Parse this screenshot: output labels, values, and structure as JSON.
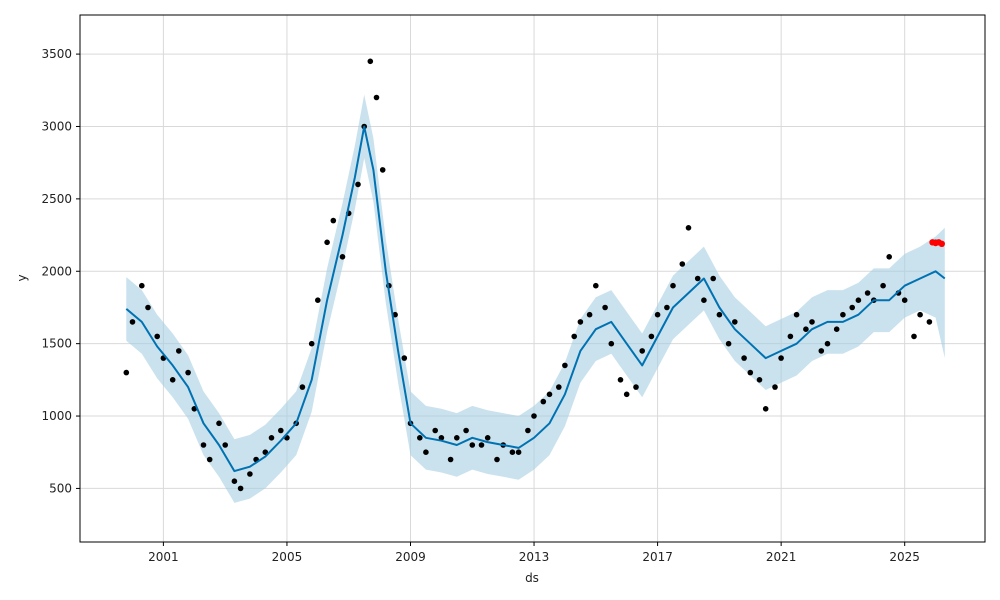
{
  "chart_data": {
    "type": "scatter",
    "xlabel": "ds",
    "ylabel": "y",
    "x_ticks": [
      "2001",
      "2005",
      "2009",
      "2013",
      "2017",
      "2021",
      "2025"
    ],
    "y_ticks": [
      "500",
      "1000",
      "1500",
      "2000",
      "2500",
      "3000",
      "3500"
    ],
    "xlim": [
      1998.3,
      2027.6
    ],
    "ylim": [
      130,
      3770
    ],
    "grid": true,
    "colors": {
      "observed": "#000000",
      "forecast": "#0072B2",
      "interval": "#a6cee3",
      "highlight": "#ff0000"
    },
    "series": [
      {
        "role": "observed",
        "x": [
          1999.8,
          2000.0,
          2000.3,
          2000.5,
          2000.8,
          2001.0,
          2001.3,
          2001.5,
          2001.8,
          2002.0,
          2002.3,
          2002.5,
          2002.8,
          2003.0,
          2003.3,
          2003.5,
          2003.8,
          2004.0,
          2004.3,
          2004.5,
          2004.8,
          2005.0,
          2005.3,
          2005.5,
          2005.8,
          2006.0,
          2006.3,
          2006.5,
          2006.8,
          2007.0,
          2007.3,
          2007.5,
          2007.7,
          2007.9,
          2008.1,
          2008.3,
          2008.5,
          2008.8,
          2009.0,
          2009.3,
          2009.5,
          2009.8,
          2010.0,
          2010.3,
          2010.5,
          2010.8,
          2011.0,
          2011.3,
          2011.5,
          2011.8,
          2012.0,
          2012.3,
          2012.5,
          2012.8,
          2013.0,
          2013.3,
          2013.5,
          2013.8,
          2014.0,
          2014.3,
          2014.5,
          2014.8,
          2015.0,
          2015.3,
          2015.5,
          2015.8,
          2016.0,
          2016.3,
          2016.5,
          2016.8,
          2017.0,
          2017.3,
          2017.5,
          2017.8,
          2018.0,
          2018.3,
          2018.5,
          2018.8,
          2019.0,
          2019.3,
          2019.5,
          2019.8,
          2020.0,
          2020.3,
          2020.5,
          2020.8,
          2021.0,
          2021.3,
          2021.5,
          2021.8,
          2022.0,
          2022.3,
          2022.5,
          2022.8,
          2023.0,
          2023.3,
          2023.5,
          2023.8,
          2024.0,
          2024.3,
          2024.5,
          2024.8,
          2025.0,
          2025.3,
          2025.5,
          2025.8,
          2026.0
        ],
        "y": [
          1300,
          1650,
          1900,
          1750,
          1550,
          1400,
          1250,
          1450,
          1300,
          1050,
          800,
          700,
          950,
          800,
          550,
          500,
          600,
          700,
          750,
          850,
          900,
          850,
          950,
          1200,
          1500,
          1800,
          2200,
          2350,
          2100,
          2400,
          2600,
          3000,
          3450,
          3200,
          2700,
          1900,
          1700,
          1400,
          950,
          850,
          750,
          900,
          850,
          700,
          850,
          900,
          800,
          800,
          850,
          700,
          800,
          750,
          750,
          900,
          1000,
          1100,
          1150,
          1200,
          1350,
          1550,
          1650,
          1700,
          1900,
          1750,
          1500,
          1250,
          1150,
          1200,
          1450,
          1550,
          1700,
          1750,
          1900,
          2050,
          2300,
          1950,
          1800,
          1950,
          1700,
          1500,
          1650,
          1400,
          1300,
          1250,
          1050,
          1200,
          1400,
          1550,
          1700,
          1600,
          1650,
          1450,
          1500,
          1600,
          1700,
          1750,
          1800,
          1850,
          1800,
          1900,
          2100,
          1850,
          1800,
          1550,
          1700,
          1650,
          2200
        ]
      },
      {
        "role": "forecast",
        "x": [
          1999.8,
          2000.3,
          2000.8,
          2001.3,
          2001.8,
          2002.3,
          2002.8,
          2003.3,
          2003.8,
          2004.3,
          2004.8,
          2005.3,
          2005.8,
          2006.3,
          2006.8,
          2007.2,
          2007.5,
          2007.8,
          2008.2,
          2008.6,
          2009.0,
          2009.5,
          2010.0,
          2010.5,
          2011.0,
          2011.5,
          2012.0,
          2012.5,
          2013.0,
          2013.5,
          2014.0,
          2014.5,
          2015.0,
          2015.5,
          2016.0,
          2016.5,
          2017.0,
          2017.5,
          2018.0,
          2018.5,
          2019.0,
          2019.5,
          2020.0,
          2020.5,
          2021.0,
          2021.5,
          2022.0,
          2022.5,
          2023.0,
          2023.5,
          2024.0,
          2024.5,
          2025.0,
          2025.5,
          2026.0,
          2026.3
        ],
        "y": [
          1740,
          1650,
          1480,
          1350,
          1200,
          950,
          800,
          620,
          650,
          720,
          830,
          950,
          1250,
          1800,
          2250,
          2650,
          3000,
          2700,
          2000,
          1450,
          950,
          850,
          830,
          800,
          850,
          820,
          800,
          780,
          850,
          950,
          1150,
          1450,
          1600,
          1650,
          1500,
          1350,
          1550,
          1750,
          1850,
          1950,
          1750,
          1600,
          1500,
          1400,
          1450,
          1500,
          1600,
          1650,
          1650,
          1700,
          1800,
          1800,
          1900,
          1950,
          2000,
          1950
        ]
      }
    ],
    "interval": {
      "x": [
        1999.8,
        2000.3,
        2000.8,
        2001.3,
        2001.8,
        2002.3,
        2002.8,
        2003.3,
        2003.8,
        2004.3,
        2004.8,
        2005.3,
        2005.8,
        2006.3,
        2006.8,
        2007.2,
        2007.5,
        2007.8,
        2008.2,
        2008.6,
        2009.0,
        2009.5,
        2010.0,
        2010.5,
        2011.0,
        2011.5,
        2012.0,
        2012.5,
        2013.0,
        2013.5,
        2014.0,
        2014.5,
        2015.0,
        2015.5,
        2016.0,
        2016.5,
        2017.0,
        2017.5,
        2018.0,
        2018.5,
        2019.0,
        2019.5,
        2020.0,
        2020.5,
        2021.0,
        2021.5,
        2022.0,
        2022.5,
        2023.0,
        2023.5,
        2024.0,
        2024.5,
        2025.0,
        2025.5,
        2026.0,
        2026.3
      ],
      "lower": [
        1520,
        1430,
        1260,
        1130,
        980,
        730,
        580,
        400,
        430,
        500,
        610,
        730,
        1030,
        1580,
        2030,
        2430,
        2780,
        2480,
        1780,
        1230,
        730,
        630,
        610,
        580,
        630,
        600,
        580,
        560,
        630,
        730,
        930,
        1230,
        1380,
        1430,
        1280,
        1130,
        1330,
        1530,
        1630,
        1730,
        1530,
        1380,
        1280,
        1180,
        1230,
        1280,
        1380,
        1430,
        1430,
        1480,
        1580,
        1580,
        1680,
        1730,
        1680,
        1400
      ],
      "upper": [
        1960,
        1870,
        1700,
        1570,
        1420,
        1170,
        1020,
        840,
        870,
        940,
        1050,
        1170,
        1470,
        2020,
        2470,
        2870,
        3220,
        2920,
        2220,
        1670,
        1170,
        1070,
        1050,
        1020,
        1070,
        1040,
        1020,
        1000,
        1070,
        1170,
        1370,
        1670,
        1820,
        1870,
        1720,
        1570,
        1770,
        1970,
        2070,
        2170,
        1970,
        1820,
        1720,
        1620,
        1670,
        1720,
        1820,
        1870,
        1870,
        1920,
        2020,
        2020,
        2120,
        2170,
        2240,
        2300
      ]
    },
    "highlight_points": {
      "x": [
        2025.9,
        2026.0,
        2026.1,
        2026.2
      ],
      "y": [
        2200,
        2195,
        2200,
        2190
      ]
    }
  }
}
